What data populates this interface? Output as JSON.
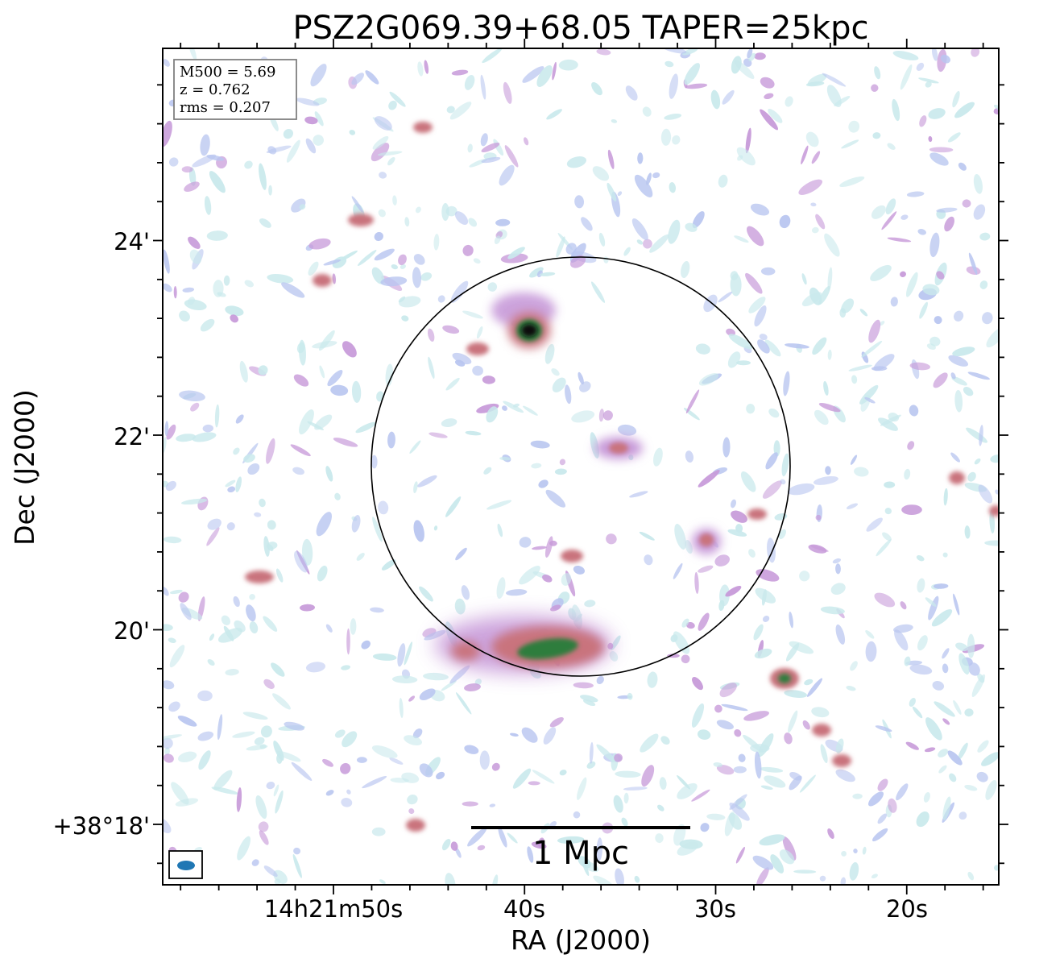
{
  "figure": {
    "title": "PSZ2G069.39+68.05 TAPER=25kpc",
    "xlabel": "RA (J2000)",
    "ylabel": "Dec (J2000)",
    "xticks": [
      "14h21m50s",
      "40s",
      "30s",
      "20s"
    ],
    "yticks": [
      "24'",
      "22'",
      "20'",
      "+38°18'"
    ],
    "info": {
      "mass": "M500 = 5.69",
      "redshift": "z = 0.762",
      "rms": "rms = 0.207"
    },
    "scalebar_label": "1 Mpc",
    "beam_color": "#1f77b4",
    "colors": {
      "noise_light": "#c9e9ec",
      "noise_mid": "#b9c6f0",
      "emission_low": "#c79ad9",
      "emission_mid": "#c9737d",
      "emission_high": "#2f7d3c",
      "peak": "#0b0b10"
    },
    "sources": [
      {
        "name": "bright-core-source"
      },
      {
        "name": "southern-extended-source"
      },
      {
        "name": "central-compact-source"
      },
      {
        "name": "eastern-compact-source"
      },
      {
        "name": "southwest-compact-source"
      }
    ]
  }
}
